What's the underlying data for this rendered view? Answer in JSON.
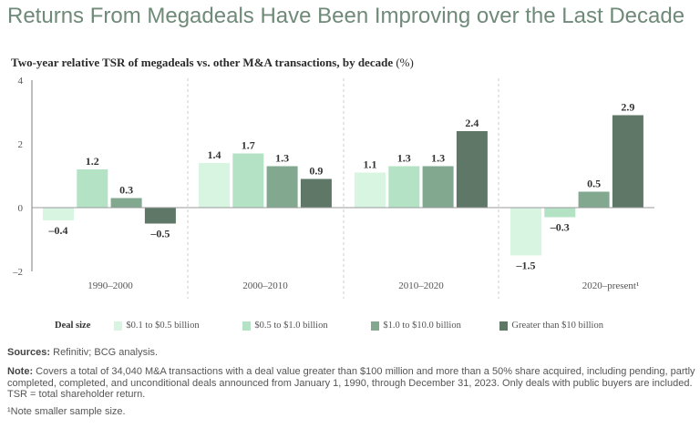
{
  "title": "Returns From Megadeals Have Been Improving over the Last Decade",
  "subtitle": "Two-year relative TSR of megadeals vs. other M&A transactions, by decade",
  "subtitle_unit": "(%)",
  "legend_title": "Deal size",
  "sources_label": "Sources:",
  "sources_text": "Refinitiv; BCG analysis.",
  "note_label": "Note:",
  "note_text": "Covers a total of 34,040 M&A transactions with a deal value greater than $100 million and more than a 50% share acquired, including pending, partly completed, completed, and unconditional deals announced from January 1, 1990, through December 31, 2023. Only deals with public buyers are included. TSR = total shareholder return.",
  "footnote": "¹Note smaller sample size.",
  "chart_data": {
    "type": "bar",
    "title": "Two-year relative TSR of megadeals vs. other M&A transactions, by decade (%)",
    "xlabel": "",
    "ylabel": "",
    "categories": [
      "1990–2000",
      "2000–2010",
      "2010–2020",
      "2020–present¹"
    ],
    "yticks": [
      4,
      2,
      0,
      -2
    ],
    "ytick_labels": [
      "4",
      "2",
      "0",
      "–2"
    ],
    "ylim": [
      -2,
      4
    ],
    "grid": false,
    "legend_position": "bottom",
    "series": [
      {
        "name": "$0.1 to $0.5 billion",
        "color": "#d8f5e2",
        "values": [
          -0.4,
          1.4,
          1.1,
          -1.5
        ],
        "labels": [
          "–0.4",
          "1.4",
          "1.1",
          "–1.5"
        ]
      },
      {
        "name": "$0.5 to $1.0 billion",
        "color": "#b3e2c5",
        "values": [
          1.2,
          1.7,
          1.3,
          -0.3
        ],
        "labels": [
          "1.2",
          "1.7",
          "1.3",
          "–0.3"
        ]
      },
      {
        "name": "$1.0 to $10.0 billion",
        "color": "#82a88f",
        "values": [
          0.3,
          1.3,
          1.3,
          0.5
        ],
        "labels": [
          "0.3",
          "1.3",
          "1.3",
          "0.5"
        ]
      },
      {
        "name": "Greater than $10 billion",
        "color": "#5f7766",
        "values": [
          -0.5,
          0.9,
          2.4,
          2.9
        ],
        "labels": [
          "–0.5",
          "0.9",
          "2.4",
          "2.9"
        ]
      }
    ]
  }
}
